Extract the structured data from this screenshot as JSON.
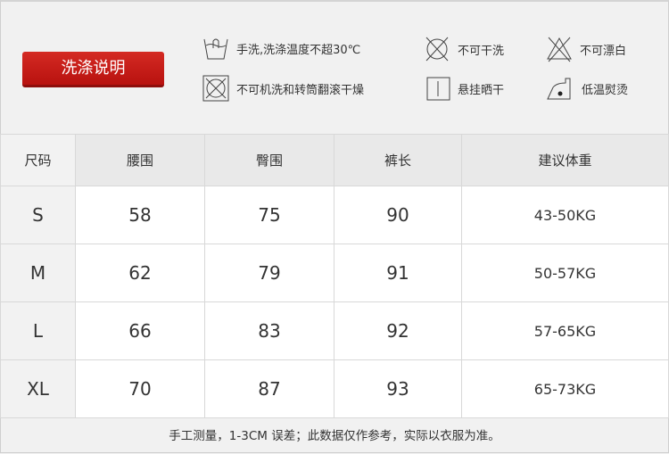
{
  "wash_title": "洗涤说明",
  "care": [
    {
      "icon": "hand-wash-icon",
      "label": "手洗,洗涤温度不超30℃"
    },
    {
      "icon": "no-dry-clean-icon",
      "label": "不可干洗"
    },
    {
      "icon": "no-bleach-icon",
      "label": "不可漂白"
    },
    {
      "icon": "no-tumble-dry-icon",
      "label": "不可机洗和转筒翻滚干燥"
    },
    {
      "icon": "hang-dry-icon",
      "label": "悬挂晒干"
    },
    {
      "icon": "low-iron-icon",
      "label": "低温熨烫"
    }
  ],
  "table": {
    "headers": [
      "尺码",
      "腰围",
      "臀围",
      "裤长",
      "建议体重"
    ],
    "rows": [
      [
        "S",
        "58",
        "75",
        "90",
        "43-50KG"
      ],
      [
        "M",
        "62",
        "79",
        "91",
        "50-57KG"
      ],
      [
        "L",
        "66",
        "83",
        "92",
        "57-65KG"
      ],
      [
        "XL",
        "70",
        "87",
        "93",
        "65-73KG"
      ]
    ]
  },
  "note": "手工测量，1-3CM 误差；此数据仅作参考，实际以衣服为准。"
}
